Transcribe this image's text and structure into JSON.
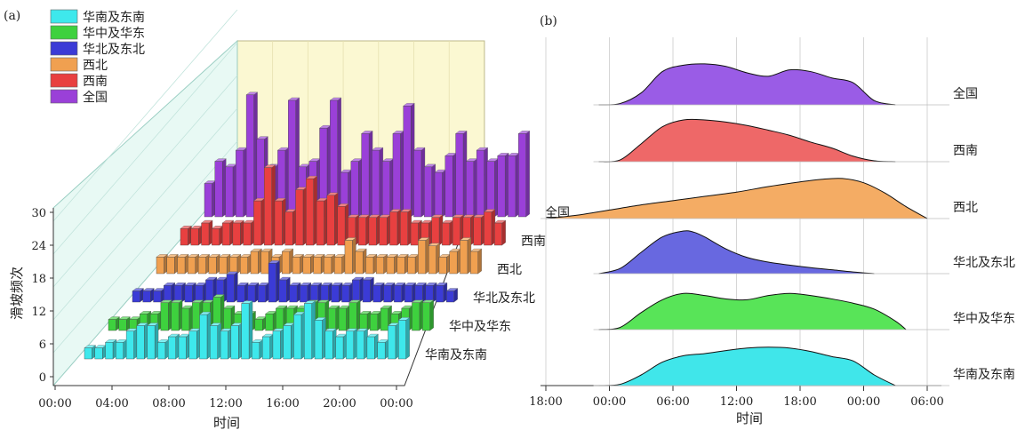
{
  "chart_data": [
    {
      "panel_label": "(a)",
      "type": "bar",
      "xlabel": "时间",
      "ylabel": "滑坡频次",
      "ylim": [
        0,
        30
      ],
      "yticks": [
        "0",
        "6",
        "12",
        "18",
        "24",
        "30"
      ],
      "xticks": [
        "00:00",
        "04:00",
        "08:00",
        "12:00",
        "16:00",
        "20:00",
        "00:00"
      ],
      "legend": [
        {
          "name": "华南及东南",
          "color": "#3ee8ec"
        },
        {
          "name": "华中及华东",
          "color": "#3ed13e"
        },
        {
          "name": "华北及东北",
          "color": "#3b3bd6"
        },
        {
          "name": "西北",
          "color": "#f0a050"
        },
        {
          "name": "西南",
          "color": "#e84040"
        },
        {
          "name": "全国",
          "color": "#9a40d8"
        }
      ],
      "series": [
        {
          "name": "华南及东南",
          "values": [
            2,
            2,
            3,
            3,
            5,
            6,
            6,
            3,
            4,
            4,
            5,
            8,
            6,
            5,
            6,
            10,
            3,
            4,
            5,
            6,
            8,
            10,
            7,
            5,
            4,
            5,
            5,
            4,
            3,
            6,
            7
          ]
        },
        {
          "name": "华中及华东",
          "values": [
            2,
            2,
            2,
            3,
            3,
            5,
            5,
            4,
            5,
            5,
            6,
            4,
            3,
            3,
            2,
            3,
            4,
            4,
            4,
            5,
            5,
            4,
            4,
            5,
            3,
            3,
            4,
            3,
            4,
            5,
            5
          ]
        },
        {
          "name": "华北及东北",
          "values": [
            2,
            2,
            2,
            3,
            3,
            3,
            3,
            4,
            4,
            5,
            3,
            3,
            3,
            7,
            4,
            3,
            3,
            3,
            3,
            3,
            3,
            4,
            4,
            3,
            3,
            3,
            3,
            3,
            3,
            3,
            2
          ]
        },
        {
          "name": "西北",
          "values": [
            3,
            3,
            3,
            3,
            3,
            3,
            3,
            3,
            3,
            4,
            4,
            3,
            4,
            3,
            3,
            3,
            3,
            3,
            6,
            4,
            3,
            3,
            3,
            3,
            3,
            6,
            5,
            3,
            4,
            6,
            4
          ]
        },
        {
          "name": "西南",
          "values": [
            3,
            3,
            4,
            3,
            4,
            4,
            4,
            8,
            14,
            8,
            6,
            10,
            12,
            8,
            9,
            7,
            5,
            5,
            5,
            5,
            6,
            6,
            4,
            4,
            5,
            4,
            5,
            5,
            5,
            6,
            4
          ]
        },
        {
          "name": "全国",
          "values": [
            6,
            10,
            9,
            12,
            22,
            14,
            9,
            12,
            21,
            9,
            10,
            16,
            21,
            8,
            10,
            15,
            12,
            10,
            15,
            20,
            12,
            9,
            8,
            11,
            15,
            10,
            12,
            10,
            11,
            11,
            15
          ]
        }
      ]
    },
    {
      "panel_label": "(b)",
      "type": "area",
      "xlabel": "时间",
      "xticks": [
        "18:00",
        "00:00",
        "06:00",
        "12:00",
        "18:00",
        "00:00",
        "06:00"
      ],
      "xlim": [
        -6,
        30
      ],
      "grid": true,
      "series": [
        {
          "name": "全国",
          "color": "#9a5ce6",
          "x": [
            -1,
            1,
            3,
            5,
            7,
            9,
            11,
            13,
            15,
            17,
            19,
            21,
            23,
            25,
            27
          ],
          "y": [
            0,
            0.03,
            0.28,
            0.78,
            0.93,
            0.96,
            0.9,
            0.75,
            0.67,
            0.82,
            0.78,
            0.63,
            0.52,
            0.1,
            0
          ]
        },
        {
          "name": "西南",
          "color": "#ee6868",
          "x": [
            -1,
            1,
            3,
            5,
            7,
            9,
            11,
            13,
            15,
            17,
            19,
            21,
            23,
            25,
            27
          ],
          "y": [
            0,
            0.04,
            0.42,
            0.82,
            0.98,
            0.98,
            0.93,
            0.85,
            0.74,
            0.62,
            0.46,
            0.32,
            0.13,
            0.02,
            0
          ]
        },
        {
          "name": "西北",
          "color": "#f4ac64",
          "x": [
            -6,
            -3,
            0,
            3,
            6,
            9,
            12,
            15,
            18,
            20,
            22,
            24,
            26,
            28,
            30
          ],
          "y": [
            0,
            0.08,
            0.2,
            0.32,
            0.42,
            0.52,
            0.62,
            0.75,
            0.86,
            0.92,
            0.94,
            0.84,
            0.6,
            0.28,
            0
          ]
        },
        {
          "name": "华北及东北",
          "color": "#6868e0",
          "x": [
            -1,
            1,
            3,
            5,
            7,
            8,
            9,
            11,
            13,
            15,
            17,
            19,
            21,
            23,
            25
          ],
          "y": [
            0,
            0.12,
            0.5,
            0.86,
            1.0,
            0.97,
            0.86,
            0.58,
            0.38,
            0.27,
            0.2,
            0.14,
            0.09,
            0.04,
            0
          ]
        },
        {
          "name": "华中及华东",
          "color": "#58e458",
          "x": [
            -1,
            1,
            3,
            5,
            7,
            9,
            11,
            13,
            15,
            17,
            19,
            21,
            23,
            25,
            27,
            28
          ],
          "y": [
            0,
            0.05,
            0.4,
            0.7,
            0.85,
            0.8,
            0.72,
            0.7,
            0.8,
            0.85,
            0.8,
            0.72,
            0.62,
            0.48,
            0.2,
            0
          ]
        },
        {
          "name": "华南及东南",
          "color": "#40e6ea",
          "x": [
            -1,
            1,
            3,
            5,
            7,
            9,
            11,
            13,
            15,
            17,
            19,
            21,
            23,
            25,
            27
          ],
          "y": [
            0,
            0.03,
            0.25,
            0.55,
            0.7,
            0.75,
            0.82,
            0.88,
            0.9,
            0.88,
            0.8,
            0.68,
            0.58,
            0.25,
            0
          ]
        }
      ]
    }
  ]
}
